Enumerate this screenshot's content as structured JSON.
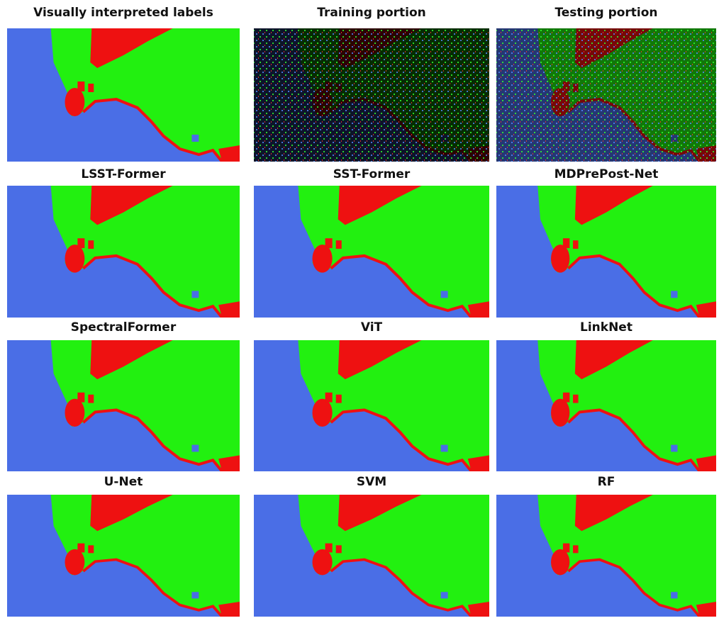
{
  "panels": [
    {
      "title": "Visually interpreted labels"
    },
    {
      "title": "Training portion"
    },
    {
      "title": "Testing portion"
    },
    {
      "title": "LSST-Former"
    },
    {
      "title": "SST-Former"
    },
    {
      "title": "MDPrePost-Net"
    },
    {
      "title": "SpectralFormer"
    },
    {
      "title": "ViT"
    },
    {
      "title": "LinkNet"
    },
    {
      "title": "U-Net"
    },
    {
      "title": "SVM"
    },
    {
      "title": "RF"
    }
  ]
}
